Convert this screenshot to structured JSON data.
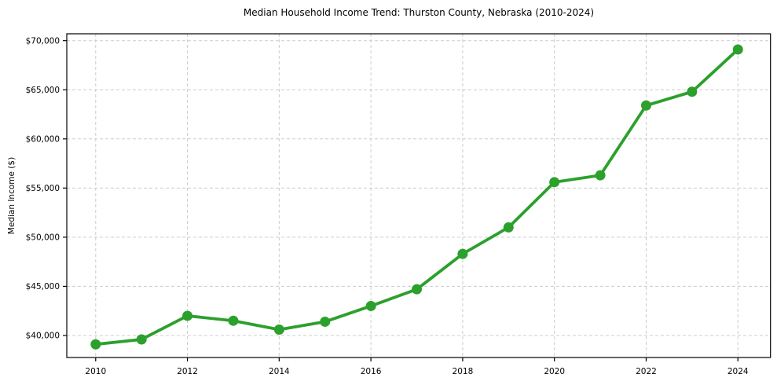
{
  "figure": {
    "background": "#ffffff"
  },
  "chart_data": {
    "type": "line",
    "title": "Median Household Income Trend: Thurston County, Nebraska (2010-2024)",
    "xlabel": "",
    "ylabel": "Median Income ($)",
    "x": [
      2010,
      2011,
      2012,
      2013,
      2014,
      2015,
      2016,
      2017,
      2018,
      2019,
      2020,
      2021,
      2022,
      2023,
      2024
    ],
    "series": [
      {
        "name": "Median household income",
        "color": "#2ca02c",
        "marker": "circle",
        "values": [
          39100,
          39600,
          42000,
          41500,
          40600,
          41400,
          43000,
          44700,
          48300,
          51000,
          55600,
          56300,
          63400,
          64800,
          69100
        ]
      }
    ],
    "xlim": [
      2009.37,
      2024.71
    ],
    "ylim": [
      37760,
      70695
    ],
    "xticks": {
      "values": [
        2010,
        2012,
        2014,
        2016,
        2018,
        2020,
        2022,
        2024
      ],
      "labels": [
        "2010",
        "2012",
        "2014",
        "2016",
        "2018",
        "2020",
        "2022",
        "2024"
      ]
    },
    "yticks": {
      "values": [
        40000,
        45000,
        50000,
        55000,
        60000,
        65000,
        70000
      ],
      "labels": [
        "$40,000",
        "$45,000",
        "$50,000",
        "$55,000",
        "$60,000",
        "$65,000",
        "$70,000"
      ]
    },
    "grid": {
      "show": true,
      "color": "#cccccc",
      "style": "dashed"
    },
    "axes": {
      "spine_color": "#000000",
      "tick_color": "#000000",
      "text_color": "#000000"
    },
    "legend": "none"
  }
}
